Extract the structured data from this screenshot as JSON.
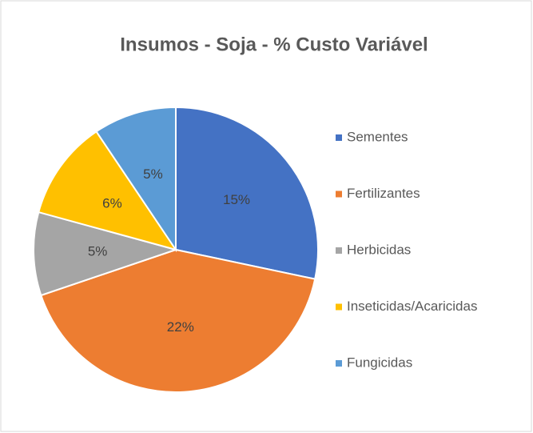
{
  "chart_data": {
    "type": "pie",
    "title": "Insumos - Soja - % Custo Variável",
    "categories": [
      "Sementes",
      "Fertilizantes",
      "Herbicidas",
      "Inseticidas/Acaricidas",
      "Fungicidas"
    ],
    "values": [
      15,
      22,
      5,
      6,
      5
    ],
    "value_labels": [
      "15%",
      "22%",
      "5%",
      "6%",
      "5%"
    ],
    "colors": [
      "#4472c4",
      "#ed7d31",
      "#a5a5a5",
      "#ffc000",
      "#5b9bd5"
    ],
    "legend": "right"
  }
}
